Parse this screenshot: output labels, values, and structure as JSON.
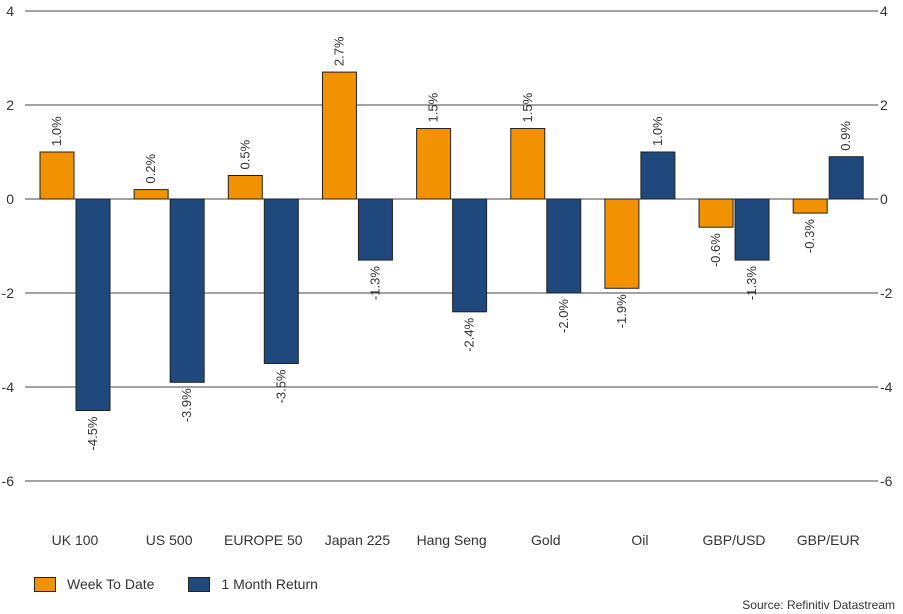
{
  "chart_data": {
    "type": "bar",
    "categories": [
      "UK 100",
      "US 500",
      "EUROPE 50",
      "Japan 225",
      "Hang Seng",
      "Gold",
      "Oil",
      "GBP/USD",
      "GBP/EUR"
    ],
    "series": [
      {
        "name": "Week To Date",
        "color": "#f39200",
        "values": [
          1.0,
          0.2,
          0.5,
          2.7,
          1.5,
          1.5,
          -1.9,
          -0.6,
          -0.3
        ],
        "labels": [
          "1.0%",
          "0.2%",
          "0.5%",
          "2.7%",
          "1.5%",
          "1.5%",
          "-1.9%",
          "-0.6%",
          "-0.3%"
        ]
      },
      {
        "name": "1 Month Return",
        "color": "#1f497d",
        "values": [
          -4.5,
          -3.9,
          -3.5,
          -1.3,
          -2.4,
          -2.0,
          1.0,
          -1.3,
          0.9
        ],
        "labels": [
          "-4.5%",
          "-3.9%",
          "-3.5%",
          "-1.3%",
          "-2.4%",
          "-2.0%",
          "1.0%",
          "-1.3%",
          "0.9%"
        ]
      }
    ],
    "yticks": [
      "4",
      "2",
      "0",
      "-2",
      "-4",
      "-6"
    ],
    "ylim": [
      -6,
      4
    ],
    "grid": true,
    "legend": "bottom-left",
    "source": "Source: Refinitiv Datastream"
  }
}
